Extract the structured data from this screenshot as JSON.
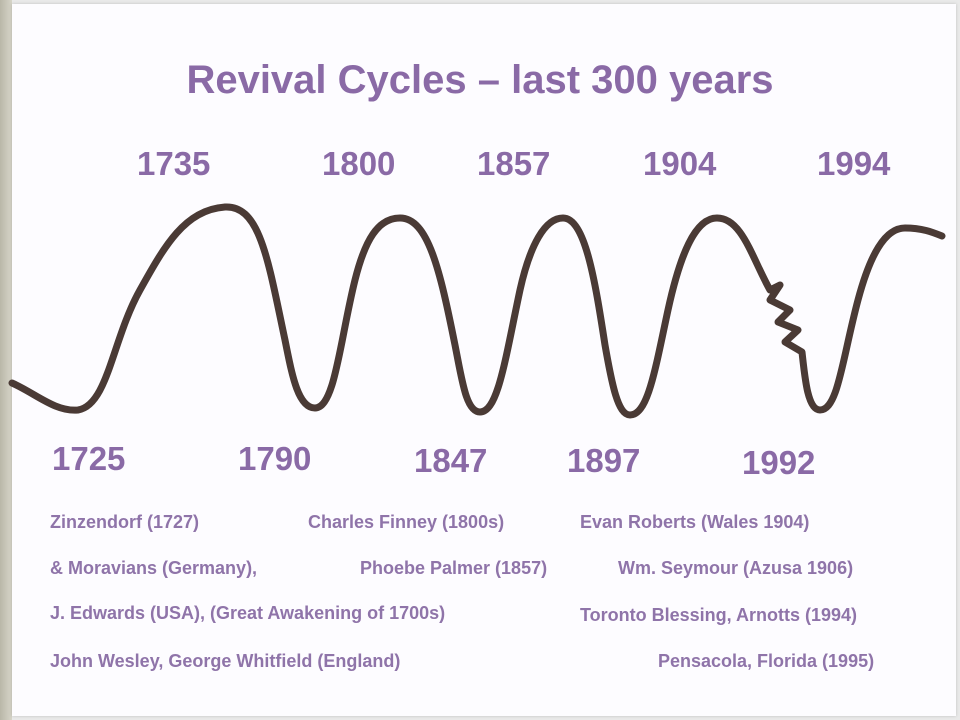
{
  "title": "Revival Cycles – last 300 years",
  "peaks": [
    "1735",
    "1800",
    "1857",
    "1904",
    "1994"
  ],
  "troughs": [
    "1725",
    "1790",
    "1847",
    "1897",
    "1992"
  ],
  "notes": {
    "col1": [
      "Zinzendorf (1727)",
      "& Moravians (Germany),",
      "J. Edwards (USA), (Great Awakening of 1700s)",
      "John Wesley, George Whitfield (England)"
    ],
    "col2": [
      "Charles Finney (1800s)",
      "Phoebe Palmer (1857)"
    ],
    "col3": [
      "Evan Roberts (Wales 1904)",
      "Wm. Seymour (Azusa 1906)",
      "Toronto Blessing, Arnotts (1994)",
      "Pensacola, Florida (1995)"
    ]
  },
  "colors": {
    "text": "#8a6aa6",
    "line": "#4a3a35",
    "background": "#fdfcff"
  }
}
